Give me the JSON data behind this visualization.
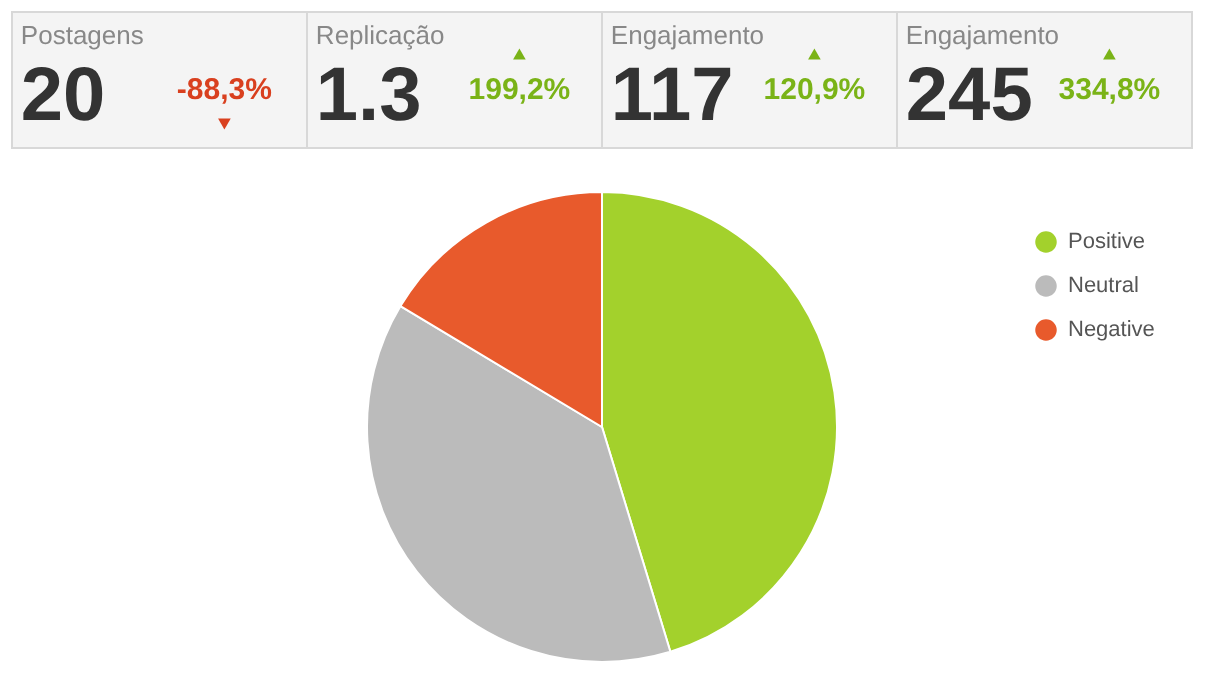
{
  "chart_data": [
    {
      "type": "other",
      "categories": [
        "Postagens",
        "Replicação",
        "Engajamento",
        "Engajamento"
      ],
      "series": [
        {
          "values": [
            20,
            1.3,
            117,
            245
          ]
        },
        {
          "values": [
            -88.3,
            199.2,
            120.9,
            334.8
          ],
          "value_labels": [
            "-88,3%",
            "199,2%",
            "120,9%",
            "334,8%"
          ],
          "colors": [
            "#d9401f",
            "#7ab317",
            "#7ab317",
            "#7ab317"
          ]
        }
      ],
      "data_labels": true
    },
    {
      "type": "pie",
      "categories": [
        "Positive",
        "Neutral",
        "Negative"
      ],
      "values": [
        45.3,
        38.3,
        16.4
      ],
      "colors": [
        "#a3d12c",
        "#bbbbbb",
        "#e85a2c"
      ],
      "legend": "top right"
    }
  ]
}
